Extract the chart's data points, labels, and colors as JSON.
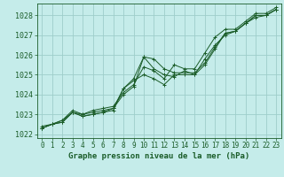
{
  "title": "Graphe pression niveau de la mer (hPa)",
  "bg_color": "#c5ecea",
  "grid_color": "#9ececa",
  "line_color": "#1a5c28",
  "ylim": [
    1021.8,
    1028.6
  ],
  "xlim": [
    -0.5,
    23.5
  ],
  "yticks": [
    1022,
    1023,
    1024,
    1025,
    1026,
    1027,
    1028
  ],
  "xticks": [
    0,
    1,
    2,
    3,
    4,
    5,
    6,
    7,
    8,
    9,
    10,
    11,
    12,
    13,
    14,
    15,
    16,
    17,
    18,
    19,
    20,
    21,
    22,
    23
  ],
  "series": [
    [
      1022.3,
      1022.5,
      1022.6,
      1023.1,
      1022.9,
      1023.0,
      1023.1,
      1023.2,
      1024.3,
      1024.8,
      1025.9,
      1025.8,
      1025.3,
      1025.1,
      1025.1,
      1025.1,
      1025.6,
      1026.4,
      1027.1,
      1027.2,
      1027.6,
      1028.0,
      1028.0,
      1028.3
    ],
    [
      1022.3,
      1022.5,
      1022.6,
      1023.1,
      1022.9,
      1023.0,
      1023.1,
      1023.3,
      1024.0,
      1024.4,
      1025.9,
      1025.3,
      1025.0,
      1024.9,
      1025.2,
      1025.0,
      1025.5,
      1026.3,
      1027.1,
      1027.2,
      1027.6,
      1028.0,
      1028.0,
      1028.3
    ],
    [
      1022.3,
      1022.5,
      1022.7,
      1023.2,
      1023.0,
      1023.2,
      1023.3,
      1023.4,
      1024.1,
      1024.5,
      1025.4,
      1025.2,
      1024.8,
      1025.5,
      1025.3,
      1025.3,
      1026.1,
      1026.9,
      1027.3,
      1027.3,
      1027.7,
      1028.1,
      1028.1,
      1028.4
    ],
    [
      1022.4,
      1022.5,
      1022.7,
      1023.1,
      1023.0,
      1023.1,
      1023.2,
      1023.3,
      1024.3,
      1024.7,
      1025.0,
      1024.8,
      1024.5,
      1025.0,
      1025.0,
      1025.0,
      1025.8,
      1026.5,
      1027.0,
      1027.2,
      1027.6,
      1027.9,
      1028.0,
      1028.3
    ]
  ],
  "tick_fontsize": 5.5,
  "title_fontsize": 6.5
}
